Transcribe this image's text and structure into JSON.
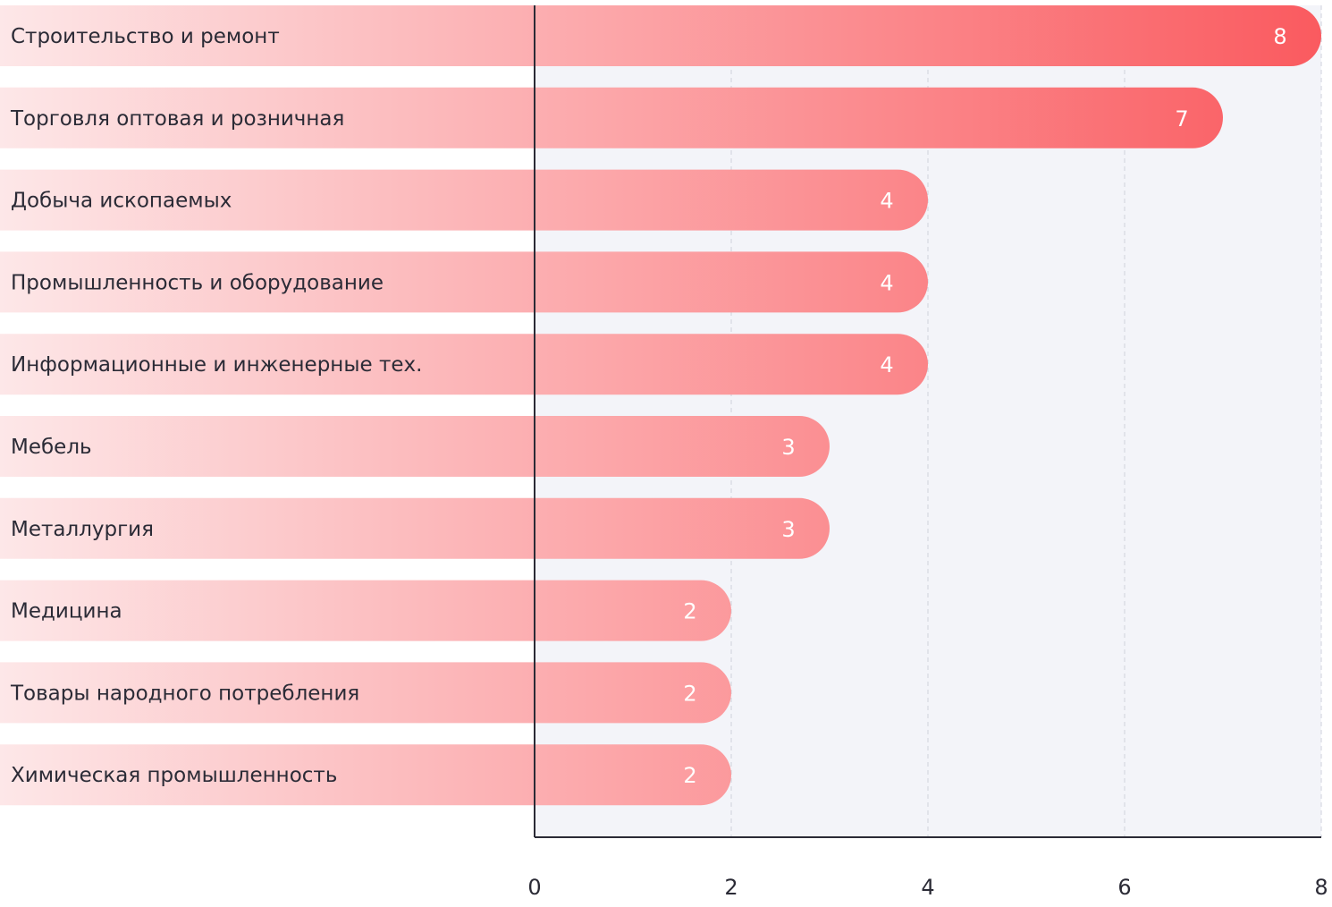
{
  "chart_data": {
    "type": "bar",
    "orientation": "horizontal",
    "title": "",
    "xlabel": "",
    "ylabel": "",
    "categories": [
      "Строительство и ремонт",
      "Торговля оптовая и розничная",
      "Добыча ископаемых",
      "Промышленность и оборудование",
      "Информационные и инженерные тех.",
      "Мебель",
      "Металлургия",
      "Медицина",
      "Товары народного потребления",
      "Химическая промышленность"
    ],
    "values": [
      8,
      7,
      4,
      4,
      4,
      3,
      3,
      2,
      2,
      2
    ],
    "value_labels": [
      "8",
      "7",
      "4",
      "4",
      "4",
      "3",
      "3",
      "2",
      "2",
      "2"
    ],
    "xlim": [
      0,
      8
    ],
    "xticks": [
      "0",
      "2",
      "4",
      "6",
      "8"
    ],
    "grid": true,
    "legend": "none"
  },
  "colors": {
    "bar_start": "#fde7e8",
    "bar_end": "#fa5a5f",
    "plot_background": "#f3f4f9",
    "axis": "#2b2b36",
    "grid": "#cfd2dc"
  }
}
